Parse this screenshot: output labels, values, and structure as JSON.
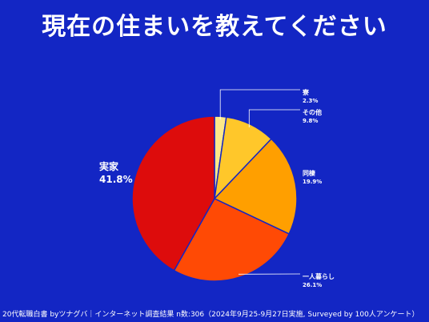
{
  "title": "現在の住まいを教えてください",
  "footer": "20代転職白書 byツナグバ｜インターネット調査結果 n数:306（2024年9月25-9月27日実施, Surveyed by 100人アンケート）",
  "chart_data": {
    "type": "pie",
    "title": "現在の住まいを教えてください",
    "slices": [
      {
        "label": "寮",
        "value": 2.3,
        "value_label": "2.3%",
        "color": "#fde98a"
      },
      {
        "label": "その他",
        "value": 9.8,
        "value_label": "9.8%",
        "color": "#ffc72a"
      },
      {
        "label": "同棲",
        "value": 19.9,
        "value_label": "19.9%",
        "color": "#ff9f00"
      },
      {
        "label": "一人暮らし",
        "value": 26.1,
        "value_label": "26.1%",
        "color": "#ff4a05"
      },
      {
        "label": "実家",
        "value": 41.8,
        "value_label": "41.8%",
        "color": "#dd0c0c"
      }
    ],
    "start": "12 o'clock",
    "direction": "clockwise"
  }
}
